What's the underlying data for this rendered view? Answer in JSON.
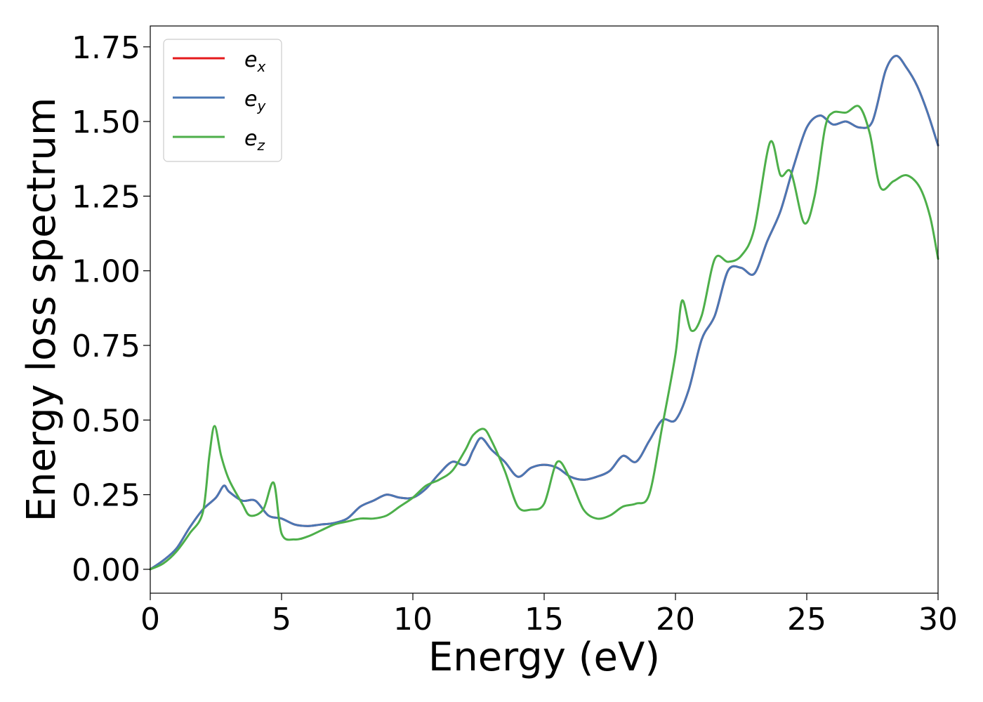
{
  "chart_data": {
    "type": "line",
    "xlabel": "Energy (eV)",
    "ylabel": "Energy loss spectrum",
    "xlim": [
      0,
      30
    ],
    "ylim": [
      -0.08,
      1.82
    ],
    "xticks": [
      0,
      5,
      10,
      15,
      20,
      25,
      30
    ],
    "xtick_labels": [
      "0",
      "5",
      "10",
      "15",
      "20",
      "25",
      "30"
    ],
    "yticks": [
      0.0,
      0.25,
      0.5,
      0.75,
      1.0,
      1.25,
      1.5,
      1.75
    ],
    "ytick_labels": [
      "0.00",
      "0.25",
      "0.50",
      "0.75",
      "1.00",
      "1.25",
      "1.50",
      "1.75"
    ],
    "grid": false,
    "legend_position": "top-left",
    "series": [
      {
        "name": "e_x",
        "label_base": "e",
        "label_sub": "x",
        "color": "#e41a1c",
        "x": [
          0,
          0.5,
          1.0,
          1.5,
          2.0,
          2.5,
          2.8,
          3.0,
          3.5,
          4.0,
          4.5,
          5.0,
          5.5,
          6.0,
          6.5,
          7.0,
          7.5,
          8.0,
          8.5,
          9.0,
          9.5,
          10.0,
          10.5,
          11.0,
          11.5,
          12.0,
          12.3,
          12.6,
          13.0,
          13.5,
          14.0,
          14.5,
          15.0,
          15.5,
          16.0,
          16.5,
          17.0,
          17.5,
          18.0,
          18.5,
          19.0,
          19.5,
          20.0,
          20.5,
          21.0,
          21.5,
          22.0,
          22.5,
          23.0,
          23.5,
          24.0,
          24.5,
          25.0,
          25.5,
          26.0,
          26.5,
          27.0,
          27.5,
          28.0,
          28.4,
          28.8,
          29.2,
          29.6,
          30.0
        ],
        "y": [
          0.0,
          0.03,
          0.07,
          0.14,
          0.2,
          0.24,
          0.28,
          0.26,
          0.23,
          0.23,
          0.18,
          0.17,
          0.15,
          0.145,
          0.15,
          0.155,
          0.17,
          0.21,
          0.23,
          0.25,
          0.24,
          0.24,
          0.27,
          0.32,
          0.36,
          0.35,
          0.4,
          0.44,
          0.4,
          0.36,
          0.31,
          0.34,
          0.35,
          0.34,
          0.31,
          0.3,
          0.31,
          0.33,
          0.38,
          0.36,
          0.43,
          0.5,
          0.5,
          0.6,
          0.77,
          0.85,
          1.0,
          1.01,
          0.99,
          1.1,
          1.2,
          1.35,
          1.48,
          1.52,
          1.49,
          1.5,
          1.48,
          1.5,
          1.67,
          1.72,
          1.68,
          1.62,
          1.53,
          1.42
        ]
      },
      {
        "name": "e_y",
        "label_base": "e",
        "label_sub": "y",
        "color": "#4a77b4",
        "x": [
          0,
          0.5,
          1.0,
          1.5,
          2.0,
          2.5,
          2.8,
          3.0,
          3.5,
          4.0,
          4.5,
          5.0,
          5.5,
          6.0,
          6.5,
          7.0,
          7.5,
          8.0,
          8.5,
          9.0,
          9.5,
          10.0,
          10.5,
          11.0,
          11.5,
          12.0,
          12.3,
          12.6,
          13.0,
          13.5,
          14.0,
          14.5,
          15.0,
          15.5,
          16.0,
          16.5,
          17.0,
          17.5,
          18.0,
          18.5,
          19.0,
          19.5,
          20.0,
          20.5,
          21.0,
          21.5,
          22.0,
          22.5,
          23.0,
          23.5,
          24.0,
          24.5,
          25.0,
          25.5,
          26.0,
          26.5,
          27.0,
          27.5,
          28.0,
          28.4,
          28.8,
          29.2,
          29.6,
          30.0
        ],
        "y": [
          0.0,
          0.03,
          0.07,
          0.14,
          0.2,
          0.24,
          0.28,
          0.26,
          0.23,
          0.23,
          0.18,
          0.17,
          0.15,
          0.145,
          0.15,
          0.155,
          0.17,
          0.21,
          0.23,
          0.25,
          0.24,
          0.24,
          0.27,
          0.32,
          0.36,
          0.35,
          0.4,
          0.44,
          0.4,
          0.36,
          0.31,
          0.34,
          0.35,
          0.34,
          0.31,
          0.3,
          0.31,
          0.33,
          0.38,
          0.36,
          0.43,
          0.5,
          0.5,
          0.6,
          0.77,
          0.85,
          1.0,
          1.01,
          0.99,
          1.1,
          1.2,
          1.35,
          1.48,
          1.52,
          1.49,
          1.5,
          1.48,
          1.5,
          1.67,
          1.72,
          1.68,
          1.62,
          1.53,
          1.42
        ]
      },
      {
        "name": "e_z",
        "label_base": "e",
        "label_sub": "z",
        "color": "#4daf4a",
        "x": [
          0,
          0.5,
          1.0,
          1.5,
          2.0,
          2.25,
          2.45,
          2.7,
          3.0,
          3.5,
          3.8,
          4.3,
          4.7,
          5.0,
          5.5,
          6.0,
          6.5,
          7.0,
          7.5,
          8.0,
          8.5,
          9.0,
          9.5,
          10.0,
          10.5,
          11.0,
          11.5,
          12.0,
          12.3,
          12.7,
          13.0,
          13.5,
          14.0,
          14.5,
          15.0,
          15.5,
          16.0,
          16.5,
          17.0,
          17.5,
          18.0,
          18.5,
          19.0,
          19.5,
          20.0,
          20.25,
          20.6,
          21.0,
          21.5,
          22.0,
          22.5,
          23.0,
          23.6,
          24.0,
          24.4,
          24.9,
          25.3,
          25.7,
          26.0,
          26.5,
          27.0,
          27.4,
          27.8,
          28.3,
          28.8,
          29.3,
          29.7,
          30.0
        ],
        "y": [
          0.0,
          0.02,
          0.06,
          0.12,
          0.19,
          0.38,
          0.48,
          0.38,
          0.3,
          0.22,
          0.18,
          0.2,
          0.29,
          0.12,
          0.1,
          0.11,
          0.13,
          0.15,
          0.16,
          0.17,
          0.17,
          0.18,
          0.21,
          0.24,
          0.28,
          0.3,
          0.33,
          0.4,
          0.45,
          0.47,
          0.43,
          0.33,
          0.21,
          0.2,
          0.22,
          0.36,
          0.3,
          0.2,
          0.17,
          0.18,
          0.21,
          0.22,
          0.25,
          0.48,
          0.72,
          0.9,
          0.8,
          0.85,
          1.04,
          1.03,
          1.05,
          1.14,
          1.43,
          1.32,
          1.33,
          1.16,
          1.25,
          1.48,
          1.53,
          1.53,
          1.55,
          1.46,
          1.28,
          1.3,
          1.32,
          1.28,
          1.18,
          1.04
        ]
      }
    ]
  }
}
